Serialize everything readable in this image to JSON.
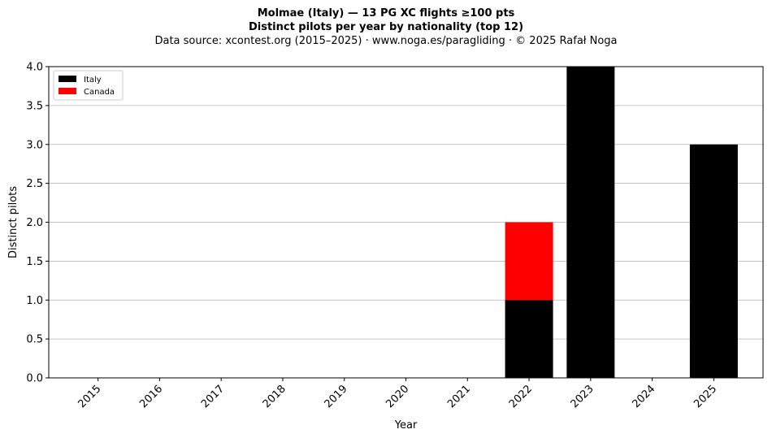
{
  "titles": {
    "line1": "Molmae (Italy)  —  13 PG XC flights ≥100 pts",
    "line2": "Distinct pilots per year by nationality (top 12)",
    "line3": "Data source: xcontest.org (2015–2025)  ·  www.noga.es/paragliding  ·  © 2025 Rafał Noga"
  },
  "chart_data": {
    "type": "bar",
    "stacked": true,
    "categories": [
      "2015",
      "2016",
      "2017",
      "2018",
      "2019",
      "2020",
      "2021",
      "2022",
      "2023",
      "2024",
      "2025"
    ],
    "series": [
      {
        "name": "Italy",
        "color": "#000000",
        "values": [
          0,
          0,
          0,
          0,
          0,
          0,
          0,
          1,
          4,
          0,
          3
        ]
      },
      {
        "name": "Canada",
        "color": "#ff0000",
        "values": [
          0,
          0,
          0,
          0,
          0,
          0,
          0,
          1,
          0,
          0,
          0
        ]
      }
    ],
    "xlabel": "Year",
    "ylabel": "Distinct pilots",
    "ylim": [
      0,
      4
    ],
    "yticks": [
      "0.0",
      "0.5",
      "1.0",
      "1.5",
      "2.0",
      "2.5",
      "3.0",
      "3.5",
      "4.0"
    ],
    "grid": "y",
    "legend_position": "top-left"
  }
}
